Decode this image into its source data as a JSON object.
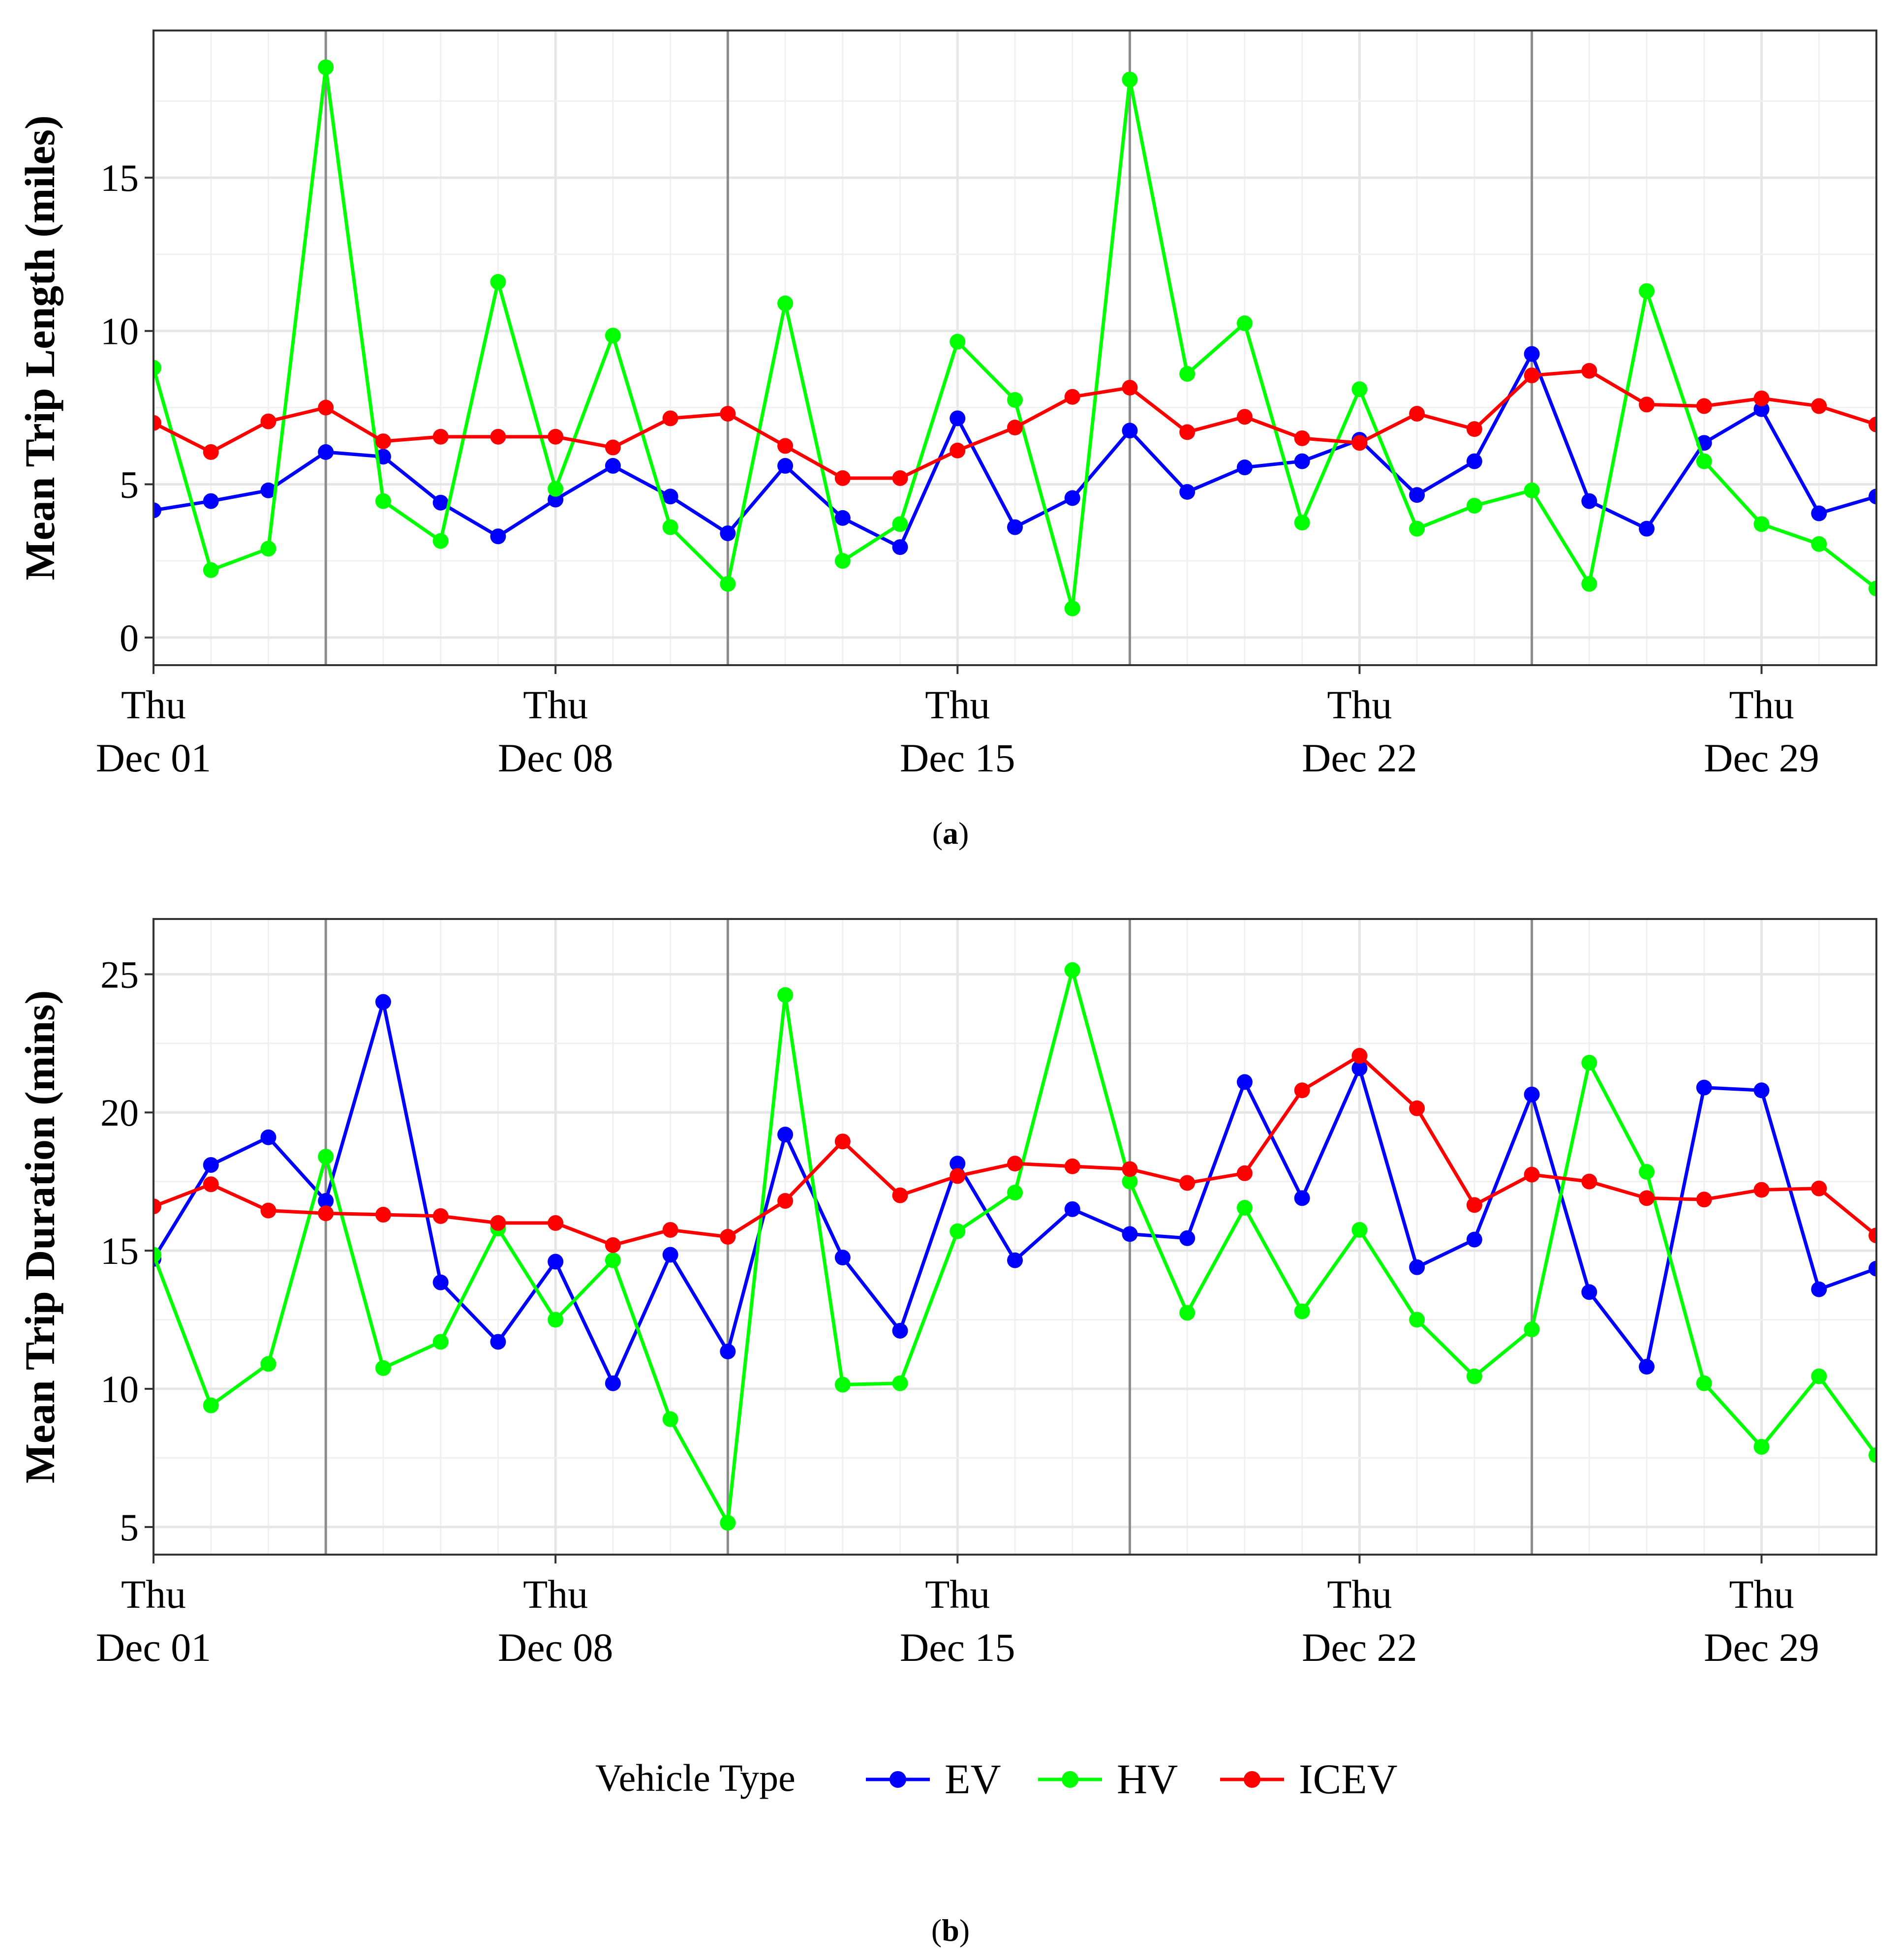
{
  "colors": {
    "EV": "#0000ff",
    "HV": "#00ff00",
    "ICEV": "#ff0000",
    "grid_minor": "#f0f0f0",
    "grid_major": "#e6e6e6",
    "week_line": "#8c8c8c",
    "panel_border": "#333333"
  },
  "legend": {
    "title": "Vehicle Type",
    "items": [
      "EV",
      "HV",
      "ICEV"
    ]
  },
  "chart_data": [
    {
      "type": "line",
      "caption_letter": "a",
      "ylabel": "Mean Trip Length (miles)",
      "xlabel": "",
      "ylim": [
        -0.9,
        19.8
      ],
      "yticks": [
        0,
        5,
        10,
        15
      ],
      "xlim": [
        1,
        31
      ],
      "x_ticks": [
        {
          "day": 1,
          "weekday": "Thu",
          "date": "Dec 01"
        },
        {
          "day": 8,
          "weekday": "Thu",
          "date": "Dec 08"
        },
        {
          "day": 15,
          "weekday": "Thu",
          "date": "Dec 15"
        },
        {
          "day": 22,
          "weekday": "Thu",
          "date": "Dec 22"
        },
        {
          "day": 29,
          "weekday": "Thu",
          "date": "Dec 29"
        }
      ],
      "week_lines": [
        4,
        11,
        18,
        25
      ],
      "x": [
        1,
        2,
        3,
        4,
        5,
        6,
        7,
        8,
        9,
        10,
        11,
        12,
        13,
        14,
        15,
        16,
        17,
        18,
        19,
        20,
        21,
        22,
        23,
        24,
        25,
        26,
        27,
        28,
        29,
        30,
        31
      ],
      "series": [
        {
          "name": "EV",
          "values": [
            4.15,
            4.45,
            4.8,
            6.05,
            5.9,
            4.4,
            3.3,
            4.5,
            5.6,
            4.6,
            3.4,
            5.6,
            3.9,
            2.95,
            7.15,
            3.6,
            4.55,
            6.75,
            4.75,
            5.55,
            5.75,
            6.45,
            4.65,
            5.75,
            9.25,
            4.45,
            3.55,
            6.35,
            7.45,
            4.05,
            4.6
          ]
        },
        {
          "name": "HV",
          "values": [
            8.8,
            2.2,
            2.9,
            18.6,
            4.45,
            3.15,
            11.6,
            4.85,
            9.85,
            3.6,
            1.75,
            10.9,
            2.5,
            3.7,
            9.65,
            7.75,
            0.95,
            18.2,
            8.6,
            10.25,
            3.75,
            8.1,
            3.55,
            4.3,
            4.8,
            1.75,
            11.3,
            5.75,
            3.7,
            3.05,
            1.6
          ]
        },
        {
          "name": "ICEV",
          "values": [
            7.0,
            6.05,
            7.05,
            7.5,
            6.4,
            6.55,
            6.55,
            6.55,
            6.2,
            7.15,
            7.3,
            6.25,
            5.2,
            5.2,
            6.1,
            6.85,
            7.85,
            8.15,
            6.7,
            7.2,
            6.5,
            6.35,
            7.3,
            6.8,
            8.55,
            8.7,
            7.6,
            7.55,
            7.8,
            7.55,
            6.95
          ]
        }
      ]
    },
    {
      "type": "line",
      "caption_letter": "b",
      "ylabel": "Mean Trip Duration (mins)",
      "xlabel": "",
      "ylim": [
        4.0,
        27.0
      ],
      "yticks": [
        5,
        10,
        15,
        20,
        25
      ],
      "xlim": [
        1,
        31
      ],
      "x_ticks": [
        {
          "day": 1,
          "weekday": "Thu",
          "date": "Dec 01"
        },
        {
          "day": 8,
          "weekday": "Thu",
          "date": "Dec 08"
        },
        {
          "day": 15,
          "weekday": "Thu",
          "date": "Dec 15"
        },
        {
          "day": 22,
          "weekday": "Thu",
          "date": "Dec 22"
        },
        {
          "day": 29,
          "weekday": "Thu",
          "date": "Dec 29"
        }
      ],
      "week_lines": [
        4,
        11,
        18,
        25
      ],
      "x": [
        1,
        2,
        3,
        4,
        5,
        6,
        7,
        8,
        9,
        10,
        11,
        12,
        13,
        14,
        15,
        16,
        17,
        18,
        19,
        20,
        21,
        22,
        23,
        24,
        25,
        26,
        27,
        28,
        29,
        30,
        31
      ],
      "series": [
        {
          "name": "EV",
          "values": [
            14.7,
            18.1,
            19.1,
            16.8,
            24.0,
            13.85,
            11.7,
            14.6,
            10.2,
            14.85,
            11.35,
            19.2,
            14.75,
            12.1,
            18.15,
            14.65,
            16.5,
            15.6,
            15.45,
            21.1,
            16.9,
            21.6,
            14.4,
            15.4,
            20.65,
            13.5,
            10.8,
            20.9,
            20.8,
            13.6,
            14.35
          ]
        },
        {
          "name": "HV",
          "values": [
            14.85,
            9.4,
            10.9,
            18.4,
            10.75,
            11.7,
            15.8,
            12.5,
            14.65,
            8.9,
            5.15,
            24.25,
            10.15,
            10.2,
            15.7,
            17.1,
            25.15,
            17.5,
            12.75,
            16.55,
            12.8,
            15.75,
            12.5,
            10.45,
            12.15,
            21.8,
            17.85,
            10.2,
            7.9,
            10.45,
            7.6
          ]
        },
        {
          "name": "ICEV",
          "values": [
            16.6,
            17.4,
            16.45,
            16.35,
            16.3,
            16.25,
            16.0,
            16.0,
            15.2,
            15.75,
            15.5,
            16.8,
            18.95,
            17.0,
            17.7,
            18.15,
            18.05,
            17.95,
            17.45,
            17.8,
            20.8,
            22.05,
            20.15,
            16.65,
            17.75,
            17.5,
            16.9,
            16.85,
            17.2,
            17.25,
            15.55
          ]
        }
      ]
    }
  ]
}
